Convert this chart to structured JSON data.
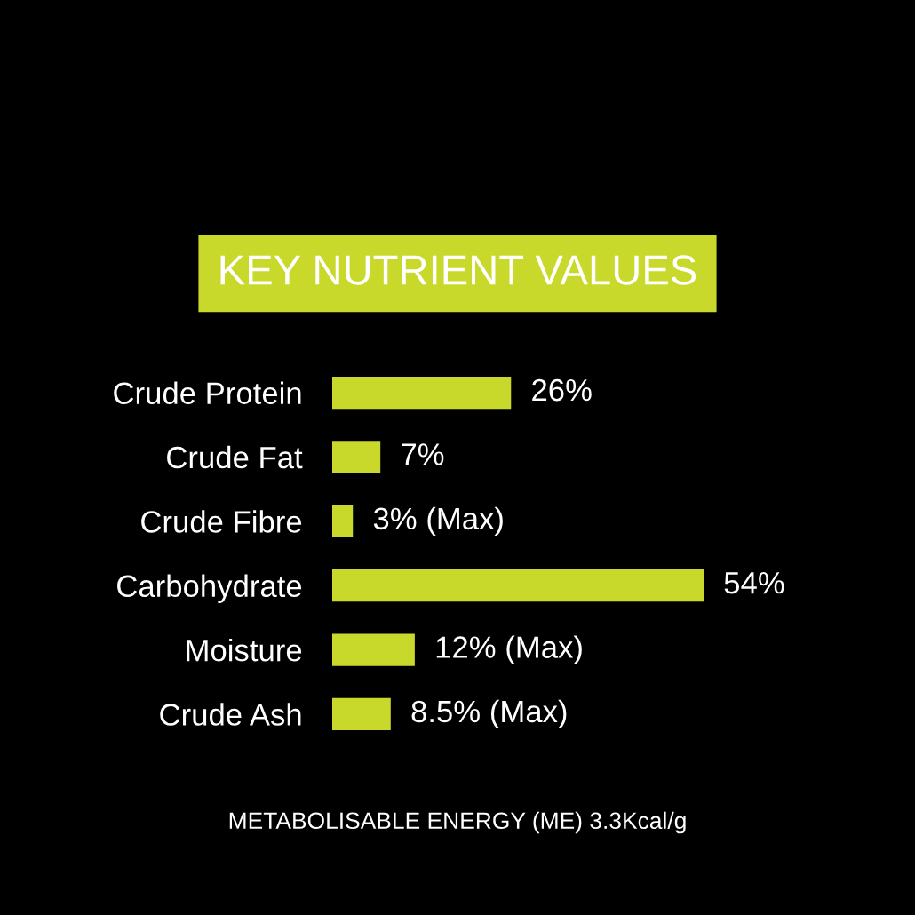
{
  "chart_data": {
    "type": "bar",
    "orientation": "horizontal",
    "title": "KEY NUTRIENT VALUES",
    "categories": [
      "Crude Protein",
      "Crude Fat",
      "Crude Fibre",
      "Carbohydrate",
      "Moisture",
      "Crude Ash"
    ],
    "values": [
      26,
      7,
      3,
      54,
      12,
      8.5
    ],
    "value_labels": [
      "26%",
      "7%",
      "3% (Max)",
      "54%",
      "12% (Max)",
      "8.5% (Max)"
    ],
    "color": "#c9d92c",
    "annotations": [
      "METABOLISABLE ENERGY (ME) 3.3Kcal/g"
    ]
  }
}
